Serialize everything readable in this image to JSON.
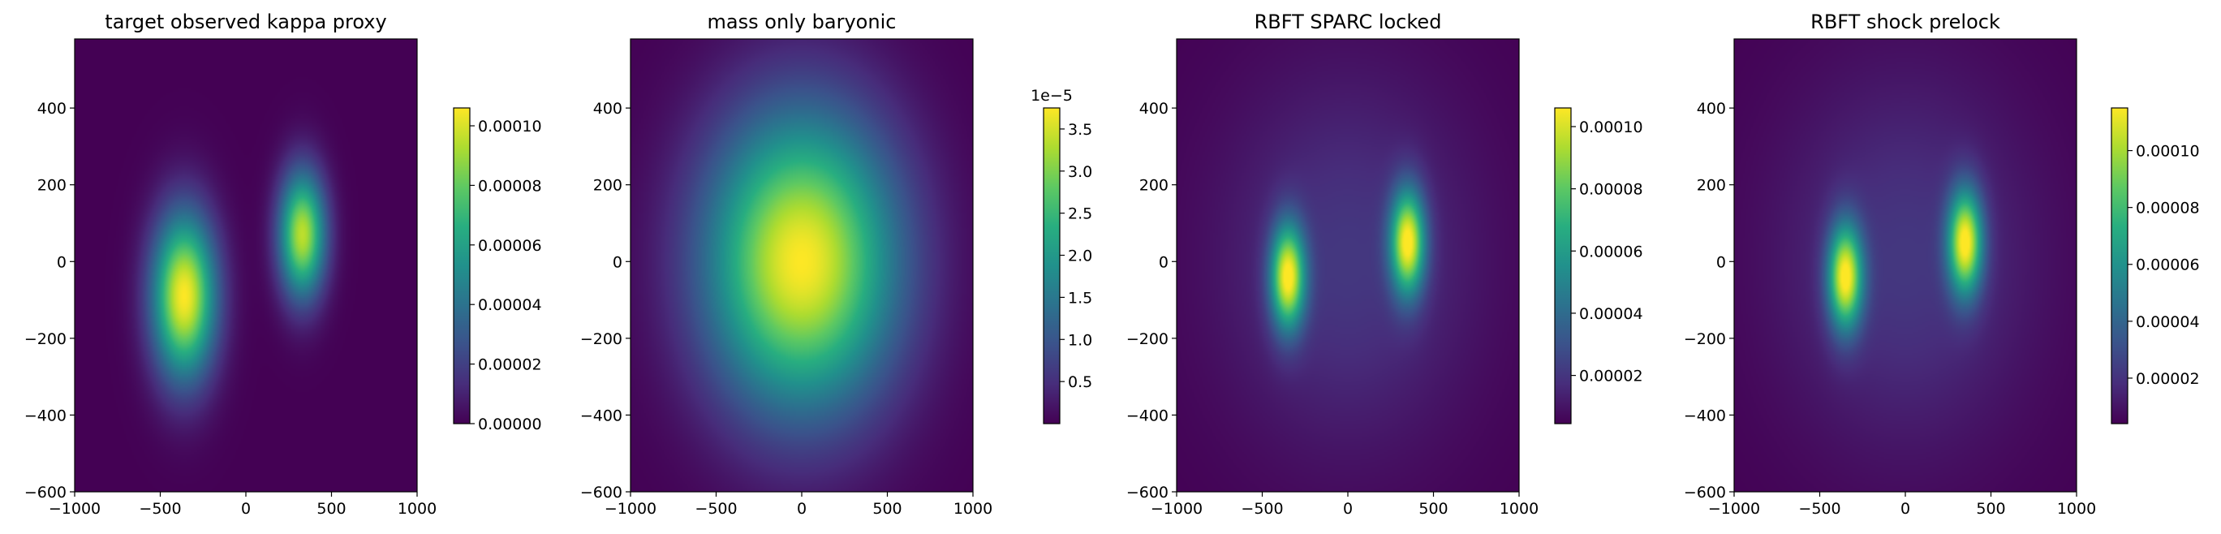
{
  "chart_data": [
    {
      "type": "heatmap",
      "title": "target observed kappa proxy",
      "colormap": "viridis",
      "xlim": [
        -1000,
        1000
      ],
      "ylim": [
        -600,
        580
      ],
      "x_ticks": [
        -1000,
        -500,
        0,
        500,
        1000
      ],
      "x_tick_labels": [
        "−1000",
        "−500",
        "0",
        "500",
        "1000"
      ],
      "y_ticks": [
        -600,
        -400,
        -200,
        0,
        200,
        400
      ],
      "y_tick_labels": [
        "−600",
        "−400",
        "−200",
        "0",
        "200",
        "400"
      ],
      "colorbar": {
        "range": [
          0,
          0.000106
        ],
        "ticks": [
          0,
          2e-05,
          4e-05,
          6e-05,
          8e-05,
          0.0001
        ],
        "tick_labels": [
          "0.00000",
          "0.00002",
          "0.00004",
          "0.00006",
          "0.00008",
          "0.00010"
        ],
        "offset_label": ""
      },
      "background_level": 0.0,
      "blobs": [
        {
          "x": -360,
          "y": -90,
          "sx": 130,
          "sy": 150,
          "amp": 1.0
        },
        {
          "x": 330,
          "y": 70,
          "sx": 95,
          "sy": 115,
          "amp": 0.9
        }
      ]
    },
    {
      "type": "heatmap",
      "title": "mass only baryonic",
      "colormap": "viridis",
      "xlim": [
        -1000,
        1000
      ],
      "ylim": [
        -600,
        580
      ],
      "x_ticks": [
        -1000,
        -500,
        0,
        500,
        1000
      ],
      "x_tick_labels": [
        "−1000",
        "−500",
        "0",
        "500",
        "1000"
      ],
      "y_ticks": [
        -600,
        -400,
        -200,
        0,
        200,
        400
      ],
      "y_tick_labels": [
        "−600",
        "−400",
        "−200",
        "0",
        "200",
        "400"
      ],
      "colorbar": {
        "range": [
          0.0,
          3.75
        ],
        "ticks": [
          0.5,
          1.0,
          1.5,
          2.0,
          2.5,
          3.0,
          3.5
        ],
        "tick_labels": [
          "0.5",
          "1.0",
          "1.5",
          "2.0",
          "2.5",
          "3.0",
          "3.5"
        ],
        "offset_label": "1e−5"
      },
      "background_level": 0.0,
      "blobs": [
        {
          "x": 0,
          "y": 0,
          "sx": 390,
          "sy": 270,
          "amp": 1.0
        }
      ]
    },
    {
      "type": "heatmap",
      "title": "RBFT SPARC locked",
      "colormap": "viridis",
      "xlim": [
        -1000,
        1000
      ],
      "ylim": [
        -600,
        580
      ],
      "x_ticks": [
        -1000,
        -500,
        0,
        500,
        1000
      ],
      "x_tick_labels": [
        "−1000",
        "−500",
        "0",
        "500",
        "1000"
      ],
      "y_ticks": [
        -600,
        -400,
        -200,
        0,
        200,
        400
      ],
      "y_tick_labels": [
        "−600",
        "−400",
        "−200",
        "0",
        "200",
        "400"
      ],
      "colorbar": {
        "range": [
          4.5e-06,
          0.000106
        ],
        "ticks": [
          2e-05,
          4e-05,
          6e-05,
          8e-05,
          0.0001
        ],
        "tick_labels": [
          "0.00002",
          "0.00004",
          "0.00006",
          "0.00008",
          "0.00010"
        ],
        "offset_label": ""
      },
      "background_level": 0.0,
      "blobs": [
        {
          "x": -350,
          "y": -40,
          "sx": 70,
          "sy": 95,
          "amp": 0.92
        },
        {
          "x": 350,
          "y": 50,
          "sx": 70,
          "sy": 95,
          "amp": 0.92
        },
        {
          "x": 0,
          "y": 0,
          "sx": 520,
          "sy": 340,
          "amp": 0.16
        }
      ]
    },
    {
      "type": "heatmap",
      "title": "RBFT shock prelock",
      "colormap": "viridis",
      "xlim": [
        -1000,
        1000
      ],
      "ylim": [
        -600,
        580
      ],
      "x_ticks": [
        -1000,
        -500,
        0,
        500,
        1000
      ],
      "x_tick_labels": [
        "−1000",
        "−500",
        "0",
        "500",
        "1000"
      ],
      "y_ticks": [
        -600,
        -400,
        -200,
        0,
        200,
        400
      ],
      "y_tick_labels": [
        "−600",
        "−400",
        "−200",
        "0",
        "200",
        "400"
      ],
      "colorbar": {
        "range": [
          4e-06,
          0.000115
        ],
        "ticks": [
          2e-05,
          4e-05,
          6e-05,
          8e-05,
          0.0001
        ],
        "tick_labels": [
          "0.00002",
          "0.00004",
          "0.00006",
          "0.00008",
          "0.00010"
        ],
        "offset_label": ""
      },
      "background_level": 0.0,
      "blobs": [
        {
          "x": -350,
          "y": -40,
          "sx": 70,
          "sy": 95,
          "amp": 0.92
        },
        {
          "x": 350,
          "y": 50,
          "sx": 70,
          "sy": 95,
          "amp": 0.92
        },
        {
          "x": 0,
          "y": 0,
          "sx": 520,
          "sy": 340,
          "amp": 0.16
        }
      ]
    }
  ]
}
